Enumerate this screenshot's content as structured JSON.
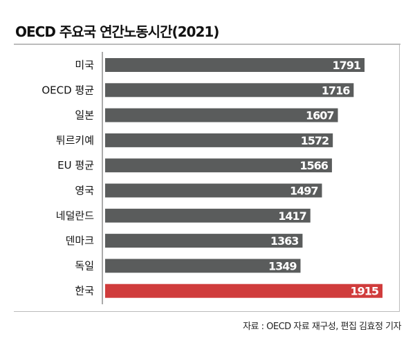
{
  "chart_data": {
    "type": "bar",
    "orientation": "horizontal",
    "title": "OECD 주요국 연간노동시간(2021)",
    "categories": [
      "미국",
      "OECD 평균",
      "일본",
      "튀르키예",
      "EU 평균",
      "영국",
      "네덜란드",
      "덴마크",
      "독일",
      "한국"
    ],
    "values": [
      1791,
      1716,
      1607,
      1572,
      1566,
      1497,
      1417,
      1363,
      1349,
      1915
    ],
    "xlim": [
      0,
      1915
    ],
    "xlabel": "",
    "ylabel": "",
    "grid": false,
    "colors": {
      "default": "#5a5c5c",
      "highlight": "#d03c3c"
    },
    "highlight_category": "한국"
  },
  "source": "자료 : OECD 자료 재구성, 편집 김효정 기자"
}
